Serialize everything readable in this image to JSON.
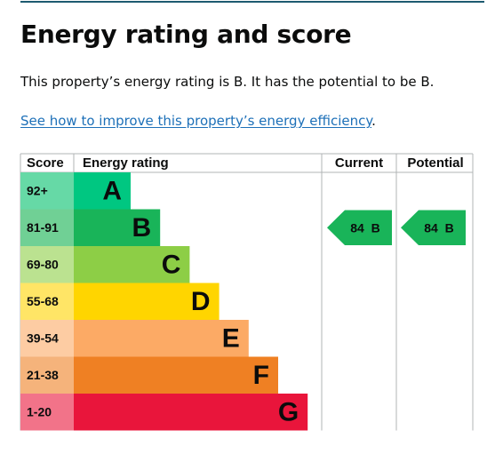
{
  "header": {
    "title": "Energy rating and score"
  },
  "intro": "This property’s energy rating is B. It has the potential to be B.",
  "link": {
    "text": "See how to improve this property’s energy efficiency",
    "suffix": "."
  },
  "table": {
    "headers": [
      "Score",
      "Energy rating",
      "Current",
      "Potential"
    ],
    "rows": [
      {
        "score": "92+",
        "letter": "A",
        "color": "#00c781",
        "tint": "#66d9a6"
      },
      {
        "score": "81-91",
        "letter": "B",
        "color": "#19b459",
        "tint": "#70d095"
      },
      {
        "score": "69-80",
        "letter": "C",
        "color": "#8dce46",
        "tint": "#bbe290"
      },
      {
        "score": "55-68",
        "letter": "D",
        "color": "#ffd500",
        "tint": "#ffe566"
      },
      {
        "score": "39-54",
        "letter": "E",
        "color": "#fcaa65",
        "tint": "#fdcca3"
      },
      {
        "score": "21-38",
        "letter": "F",
        "color": "#ef8023",
        "tint": "#f5b37b"
      },
      {
        "score": "1-20",
        "letter": "G",
        "color": "#e9153b",
        "tint": "#f27389"
      }
    ],
    "current": {
      "score": 84,
      "band": "B"
    },
    "potential": {
      "score": 84,
      "band": "B"
    }
  }
}
